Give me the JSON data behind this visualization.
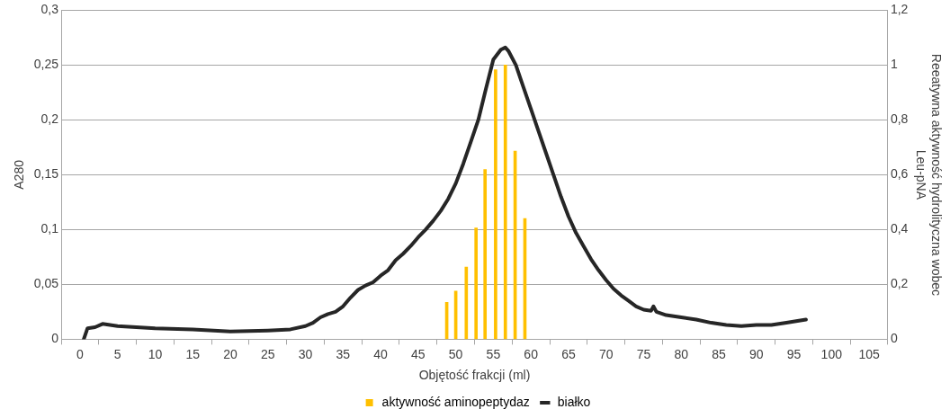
{
  "chart_data": {
    "type": "line",
    "xlabel": "Objętość frakcji (ml)",
    "ylabel": "A280",
    "y2label": "Reeatywna aktywność hydrolityczna wobec Leu-pNA",
    "xlim": [
      0,
      105
    ],
    "xticks": [
      0,
      5,
      10,
      15,
      20,
      25,
      30,
      35,
      40,
      45,
      50,
      55,
      60,
      65,
      70,
      75,
      80,
      85,
      90,
      95,
      100,
      105
    ],
    "ylim": [
      0,
      0.3
    ],
    "yticks": [
      0,
      {
        "value": 0.05,
        "label": "0,05"
      },
      {
        "value": 0.1,
        "label": "0,1"
      },
      {
        "value": 0.15,
        "label": "0,15"
      },
      {
        "value": 0.2,
        "label": "0,2"
      },
      {
        "value": 0.25,
        "label": "0,25"
      },
      {
        "value": 0.3,
        "label": "0,3"
      }
    ],
    "y2lim": [
      0,
      1.2
    ],
    "y2ticks": [
      0,
      {
        "value": 0.2,
        "label": "0,2"
      },
      {
        "value": 0.4,
        "label": "0,4"
      },
      {
        "value": 0.6,
        "label": "0,6"
      },
      {
        "value": 0.8,
        "label": "0,8"
      },
      1,
      {
        "value": 1.2,
        "label": "1,2"
      }
    ],
    "grid": "y",
    "legend": "bottom",
    "marker": "none",
    "line_style": "solid",
    "series": [
      {
        "name": "aktywność aminopeptydaz",
        "type": "bar",
        "axis": "y2",
        "color": "#ffc000",
        "x": [
          48.8,
          50.0,
          51.4,
          52.7,
          53.9,
          55.3,
          56.6,
          57.9,
          59.2
        ],
        "values": [
          0.135,
          0.176,
          0.263,
          0.406,
          0.619,
          0.983,
          1.0,
          0.686,
          0.44
        ]
      },
      {
        "name": "białko",
        "color": "#262626",
        "x": [
          0.5,
          1,
          2,
          3,
          5,
          10,
          15,
          20,
          25,
          28,
          30,
          31,
          32,
          33,
          34,
          35,
          36,
          37,
          38,
          39,
          40,
          41,
          42,
          43,
          44,
          45,
          46,
          47,
          48,
          49,
          50,
          51,
          52,
          53,
          54,
          55,
          56,
          56.6,
          57,
          58,
          59,
          60,
          61,
          62,
          63,
          64,
          65,
          66,
          67,
          68,
          69,
          70,
          71,
          72,
          73,
          74,
          75,
          76,
          76.3,
          76.7,
          78,
          80,
          82,
          84,
          86,
          88,
          90,
          92,
          94,
          96.6
        ],
        "values": [
          0,
          0.01,
          0.011,
          0.014,
          0.012,
          0.01,
          0.009,
          0.007,
          0.008,
          0.009,
          0.012,
          0.015,
          0.02,
          0.023,
          0.025,
          0.03,
          0.038,
          0.045,
          0.049,
          0.052,
          0.058,
          0.063,
          0.072,
          0.078,
          0.085,
          0.093,
          0.1,
          0.108,
          0.117,
          0.128,
          0.142,
          0.16,
          0.18,
          0.2,
          0.228,
          0.255,
          0.264,
          0.266,
          0.263,
          0.25,
          0.23,
          0.21,
          0.19,
          0.17,
          0.15,
          0.13,
          0.112,
          0.097,
          0.085,
          0.073,
          0.063,
          0.054,
          0.046,
          0.04,
          0.035,
          0.03,
          0.027,
          0.026,
          0.03,
          0.025,
          0.022,
          0.02,
          0.018,
          0.015,
          0.013,
          0.012,
          0.013,
          0.013,
          0.015,
          0.018
        ]
      }
    ]
  }
}
